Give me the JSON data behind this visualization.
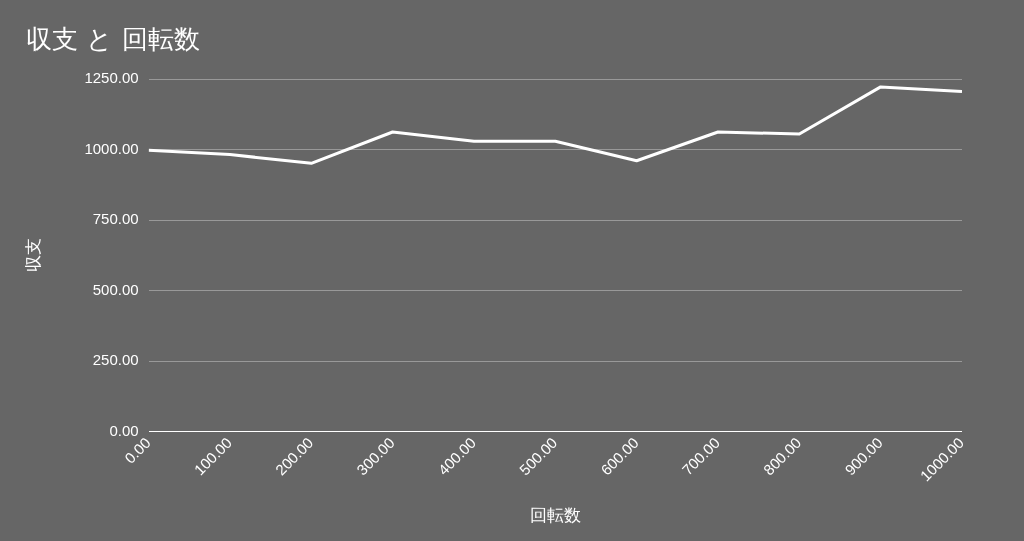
{
  "chart_data": {
    "type": "line",
    "title": "収支 と 回転数",
    "xlabel": "回転数",
    "ylabel": "収支",
    "x": [
      0,
      100,
      200,
      300,
      400,
      500,
      600,
      700,
      800,
      900,
      1000
    ],
    "series": [
      {
        "color": "#ffffff",
        "values": [
          997,
          982,
          951,
          1062,
          1029,
          1029,
          960,
          1062,
          1055,
          1222,
          1206
        ]
      }
    ],
    "xlim": [
      0,
      1000
    ],
    "xticks": [
      {
        "value": 0,
        "label": "0.00"
      },
      {
        "value": 100,
        "label": "100.00"
      },
      {
        "value": 200,
        "label": "200.00"
      },
      {
        "value": 300,
        "label": "300.00"
      },
      {
        "value": 400,
        "label": "400.00"
      },
      {
        "value": 500,
        "label": "500.00"
      },
      {
        "value": 600,
        "label": "600.00"
      },
      {
        "value": 700,
        "label": "700.00"
      },
      {
        "value": 800,
        "label": "800.00"
      },
      {
        "value": 900,
        "label": "900.00"
      },
      {
        "value": 1000,
        "label": "1000.00"
      }
    ],
    "ylim": [
      0,
      1250
    ],
    "yticks": [
      {
        "value": 0,
        "label": "0.00"
      },
      {
        "value": 250,
        "label": "250.00"
      },
      {
        "value": 500,
        "label": "500.00"
      },
      {
        "value": 750,
        "label": "750.00"
      },
      {
        "value": 1000,
        "label": "1000.00"
      },
      {
        "value": 1250,
        "label": "1250.00"
      }
    ],
    "grid": "y",
    "legend": false,
    "marker": "none",
    "line_style": "solid"
  }
}
